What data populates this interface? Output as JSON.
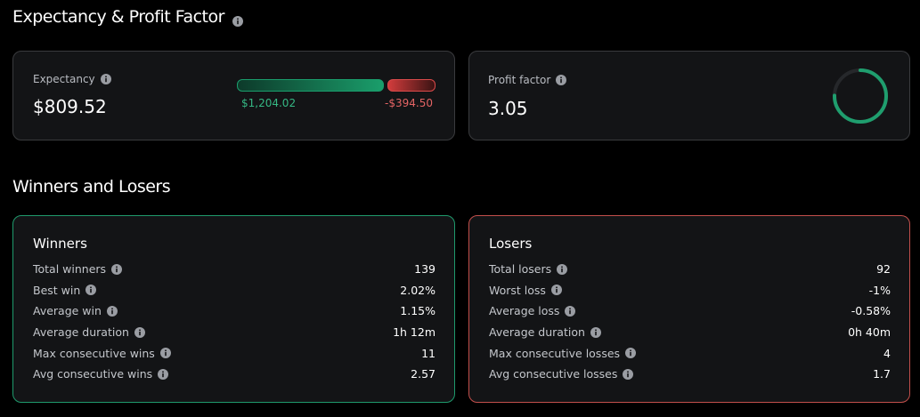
{
  "expectancy_section": {
    "title": "Expectancy & Profit Factor",
    "expectancy": {
      "label": "Expectancy",
      "value": "$809.52",
      "win": {
        "value": 1204.02,
        "label": "$1,204.02"
      },
      "loss": {
        "value": -394.5,
        "label": "-$394.50"
      }
    },
    "profit_factor": {
      "label": "Profit factor",
      "value": 3.05
    }
  },
  "results_section": {
    "title": "Winners and Losers",
    "winners": {
      "title": "Winners",
      "rows": [
        {
          "label": "Total winners",
          "value": "139"
        },
        {
          "label": "Best win",
          "value": "2.02%"
        },
        {
          "label": "Average win",
          "value": "1.15%"
        },
        {
          "label": "Average duration",
          "value": "1h 12m"
        },
        {
          "label": "Max consecutive wins",
          "value": "11"
        },
        {
          "label": "Avg consecutive wins",
          "value": "2.57"
        }
      ]
    },
    "losers": {
      "title": "Losers",
      "rows": [
        {
          "label": "Total losers",
          "value": "92"
        },
        {
          "label": "Worst loss",
          "value": "-1%"
        },
        {
          "label": "Average loss",
          "value": "-0.58%"
        },
        {
          "label": "Average duration",
          "value": "0h 40m"
        },
        {
          "label": "Max consecutive losses",
          "value": "4"
        },
        {
          "label": "Avg consecutive losses",
          "value": "1.7"
        }
      ]
    }
  }
}
